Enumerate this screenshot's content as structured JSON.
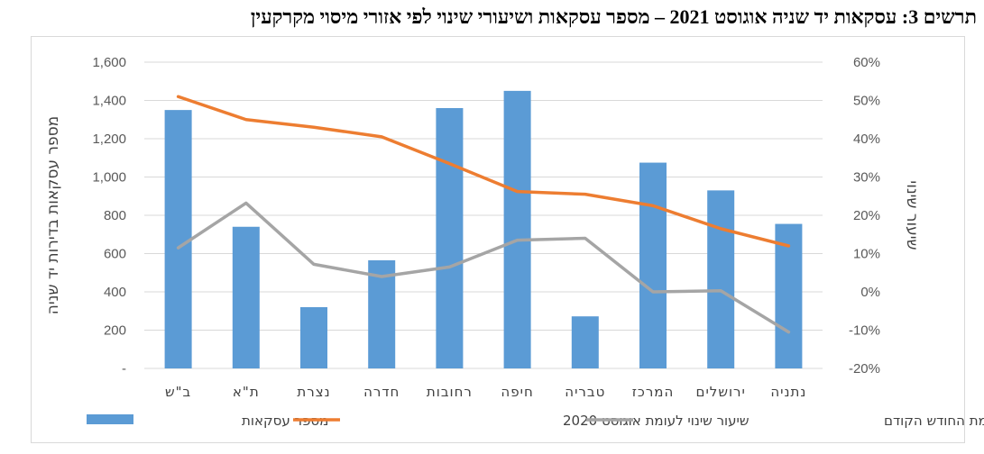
{
  "title": "תרשים 3: עסקאות יד שניה אוגוסט 2021 – מספר עסקאות ושיעורי שינוי לפי אזורי מיסוי מקרקעין",
  "chart_data": {
    "type": "bar",
    "categories": [
      "ב\"ש",
      "ת\"א",
      "נצרת",
      "חדרה",
      "רחובות",
      "חיפה",
      "טבריה",
      "המרכז",
      "ירושלים",
      "נתניה"
    ],
    "ylabel": "מספר עסקאות בדירות יד שניה",
    "y2label": "שיעור שינוי",
    "ylim": [
      0,
      1600
    ],
    "y2lim": [
      -0.2,
      0.6
    ],
    "y_ticks": [
      "-",
      "200",
      "400",
      "600",
      "800",
      "1,000",
      "1,200",
      "1,400",
      "1,600"
    ],
    "y2_ticks": [
      "-20%",
      "-10%",
      "0%",
      "10%",
      "20%",
      "30%",
      "40%",
      "50%",
      "60%"
    ],
    "grid": true,
    "legend_position": "bottom",
    "series": [
      {
        "name": "מספר עסקאות",
        "type": "bar",
        "axis": "left",
        "color": "#5B9BD5",
        "values": [
          1350,
          740,
          320,
          565,
          1360,
          1450,
          272,
          1075,
          930,
          755
        ]
      },
      {
        "name": "שיעור שינוי לעומת אוגוסט 2020",
        "type": "line",
        "axis": "right",
        "color": "#ED7D31",
        "values": [
          0.51,
          0.45,
          0.43,
          0.405,
          0.335,
          0.262,
          0.255,
          0.225,
          0.165,
          0.12
        ]
      },
      {
        "name": "שיעור שינוי לעומת החודש הקודם",
        "type": "line",
        "axis": "right",
        "color": "#A5A5A5",
        "values": [
          0.115,
          0.232,
          0.072,
          0.04,
          0.065,
          0.135,
          0.14,
          0.0,
          0.003,
          -0.105
        ]
      }
    ]
  }
}
